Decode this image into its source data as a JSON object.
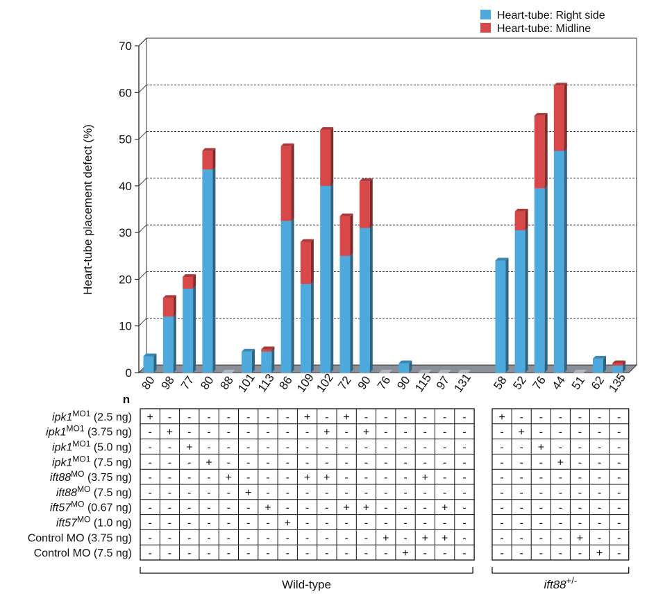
{
  "chart_data": {
    "type": "bar",
    "stacked": true,
    "ylabel": "Heart-tube placement defect (%)",
    "ylim": [
      0,
      70
    ],
    "yticks": [
      0,
      10,
      20,
      30,
      40,
      50,
      60,
      70
    ],
    "grid": "horizontal-dashed",
    "legend_position": "top-right",
    "categories": [
      "80",
      "98",
      "77",
      "80",
      "88",
      "101",
      "113",
      "86",
      "109",
      "102",
      "72",
      "90",
      "76",
      "90",
      "115",
      "97",
      "131",
      "58",
      "52",
      "76",
      "44",
      "51",
      "62",
      "135"
    ],
    "series": [
      {
        "name": "Heart-tube: Right side",
        "color": "#4ea9dc",
        "values": [
          3.5,
          12,
          18,
          43.5,
          0,
          4.5,
          4.5,
          32.5,
          19,
          40,
          25,
          31,
          0,
          2,
          0,
          0,
          0,
          24,
          30.5,
          39.5,
          47.5,
          0,
          3,
          1.5
        ]
      },
      {
        "name": "Heart-tube: Midline",
        "color": "#d84848",
        "values": [
          0,
          4,
          2.5,
          4,
          0,
          0,
          0.5,
          16,
          9,
          12,
          8.5,
          10,
          0,
          0,
          0,
          0,
          0,
          0,
          4,
          15.5,
          14,
          0,
          0,
          0.5
        ]
      }
    ],
    "groups": [
      {
        "label": "Wild-type",
        "start": 0,
        "end": 16,
        "superscript": ""
      },
      {
        "label": "ift88",
        "start": 17,
        "end": 23,
        "superscript": "+/-"
      }
    ],
    "n_label": "n",
    "table": {
      "rows": [
        {
          "label_italic": "ipk1",
          "label_sup": "MO1",
          "label_rest": " (2.5 ng)",
          "plus": [
            0,
            8,
            10,
            17
          ]
        },
        {
          "label_italic": "ipk1",
          "label_sup": "MO1",
          "label_rest": " (3.75 ng)",
          "plus": [
            1,
            9,
            11,
            18
          ]
        },
        {
          "label_italic": "ipk1",
          "label_sup": "MO1",
          "label_rest": " (5.0 ng)",
          "plus": [
            2,
            19
          ]
        },
        {
          "label_italic": "ipk1",
          "label_sup": "MO1",
          "label_rest": " (7.5 ng)",
          "plus": [
            3,
            20
          ]
        },
        {
          "label_italic": "ift88",
          "label_sup": "MO",
          "label_rest": " (3.75 ng)",
          "plus": [
            4,
            8,
            9,
            14
          ]
        },
        {
          "label_italic": "ift88",
          "label_sup": "MO",
          "label_rest": " (7.5 ng)",
          "plus": [
            5
          ]
        },
        {
          "label_italic": "ift57",
          "label_sup": "MO",
          "label_rest": " (0.67 ng)",
          "plus": [
            6,
            10,
            11,
            15
          ]
        },
        {
          "label_italic": "ift57",
          "label_sup": "MO",
          "label_rest": " (1.0 ng)",
          "plus": [
            7
          ]
        },
        {
          "label_italic": "",
          "label_sup": "",
          "label_rest": "Control MO (3.75 ng)",
          "plus": [
            12,
            14,
            15,
            21
          ]
        },
        {
          "label_italic": "",
          "label_sup": "",
          "label_rest": "Control MO (7.5 ng)",
          "plus": [
            13,
            22
          ]
        }
      ],
      "plus_symbol": "+",
      "minus_symbol": "-"
    }
  }
}
